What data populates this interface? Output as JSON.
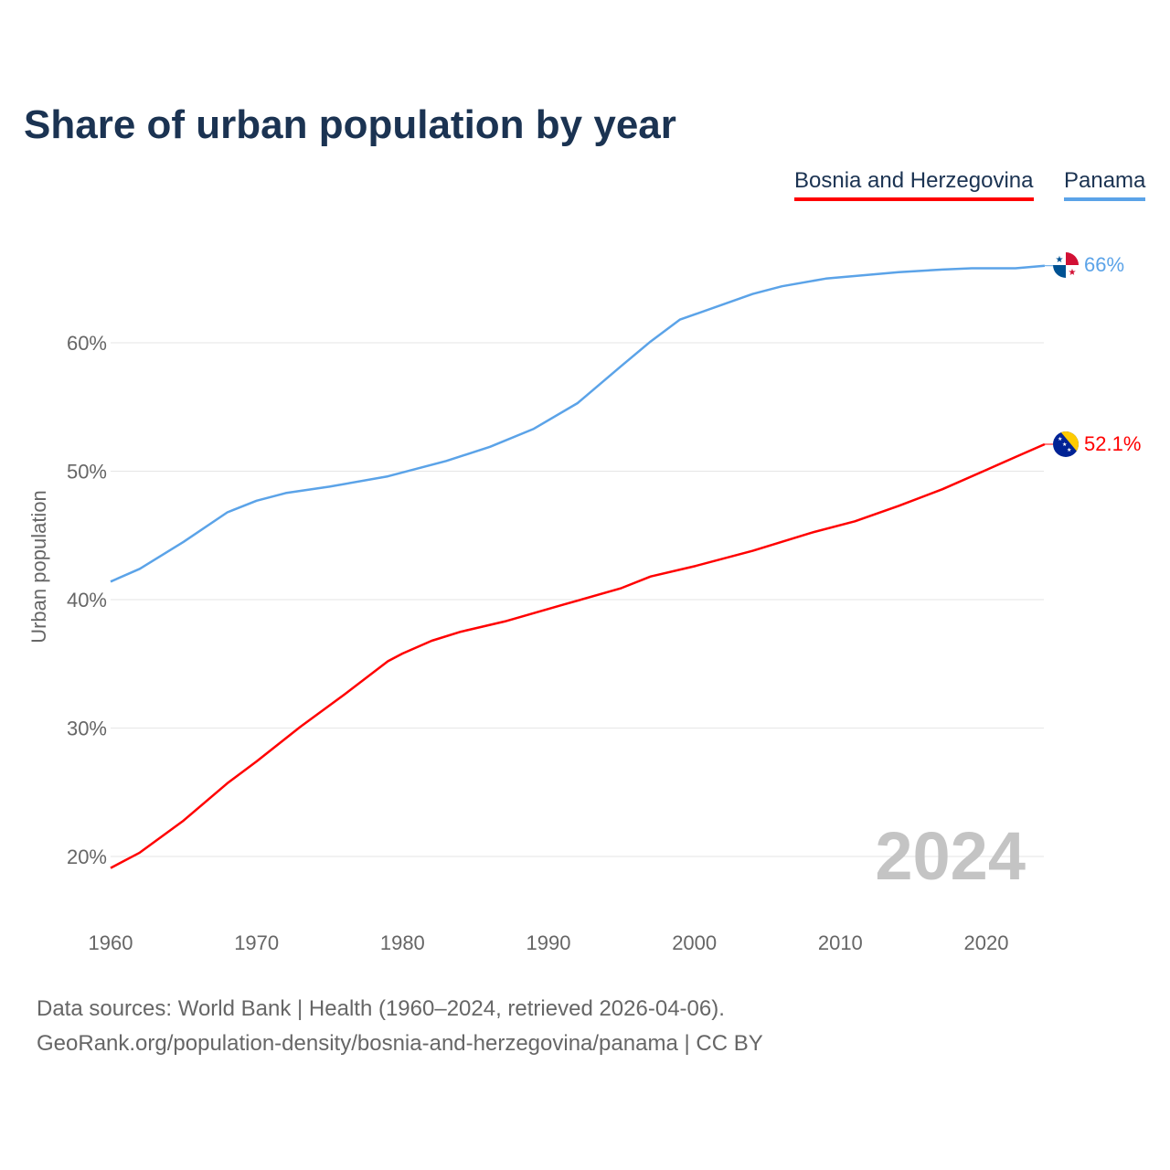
{
  "title": "Share of urban population by year",
  "legend": [
    {
      "label": "Bosnia and Herzegovina",
      "color": "#ff0000"
    },
    {
      "label": "Panama",
      "color": "#5ba3e8"
    }
  ],
  "year_watermark": "2024",
  "footer": {
    "line1": "Data sources: World Bank | Health (1960–2024, retrieved 2026-04-06).",
    "line2": "GeoRank.org/population-density/bosnia-and-herzegovina/panama | CC BY"
  },
  "chart_data": {
    "type": "line",
    "title": "Share of urban population by year",
    "xlabel": "",
    "ylabel": "Urban population",
    "xlim": [
      1960,
      2024
    ],
    "ylim": [
      15,
      68
    ],
    "x_ticks": [
      "1960",
      "1970",
      "1980",
      "1990",
      "2000",
      "2010",
      "2020"
    ],
    "y_ticks": [
      {
        "value": 20,
        "label": "20%"
      },
      {
        "value": 30,
        "label": "30%"
      },
      {
        "value": 40,
        "label": "40%"
      },
      {
        "value": 50,
        "label": "50%"
      },
      {
        "value": 60,
        "label": "60%"
      }
    ],
    "grid": true,
    "legend_position": "top-right",
    "series": [
      {
        "name": "Bosnia and Herzegovina",
        "color": "#ff0000",
        "end_label": "52.1%",
        "x": [
          1960,
          1962,
          1965,
          1968,
          1970,
          1973,
          1976,
          1979,
          1980,
          1982,
          1984,
          1987,
          1991,
          1995,
          1997,
          2000,
          2004,
          2008,
          2011,
          2014,
          2017,
          2020,
          2022,
          2024
        ],
        "y": [
          19.1,
          20.3,
          22.8,
          25.7,
          27.4,
          30.1,
          32.6,
          35.2,
          35.8,
          36.8,
          37.5,
          38.3,
          39.6,
          40.9,
          41.8,
          42.6,
          43.8,
          45.2,
          46.1,
          47.3,
          48.6,
          50.1,
          51.1,
          52.1
        ]
      },
      {
        "name": "Panama",
        "color": "#5ba3e8",
        "end_label": "66%",
        "x": [
          1960,
          1962,
          1965,
          1968,
          1970,
          1972,
          1975,
          1979,
          1983,
          1986,
          1989,
          1992,
          1995,
          1997,
          1999,
          2000,
          2004,
          2006,
          2009,
          2014,
          2017,
          2019,
          2022,
          2024
        ],
        "y": [
          41.4,
          42.4,
          44.5,
          46.8,
          47.7,
          48.3,
          48.8,
          49.6,
          50.8,
          51.9,
          53.3,
          55.3,
          58.2,
          60.1,
          61.8,
          62.2,
          63.8,
          64.4,
          65.0,
          65.5,
          65.7,
          65.8,
          65.8,
          66.0
        ]
      }
    ]
  }
}
